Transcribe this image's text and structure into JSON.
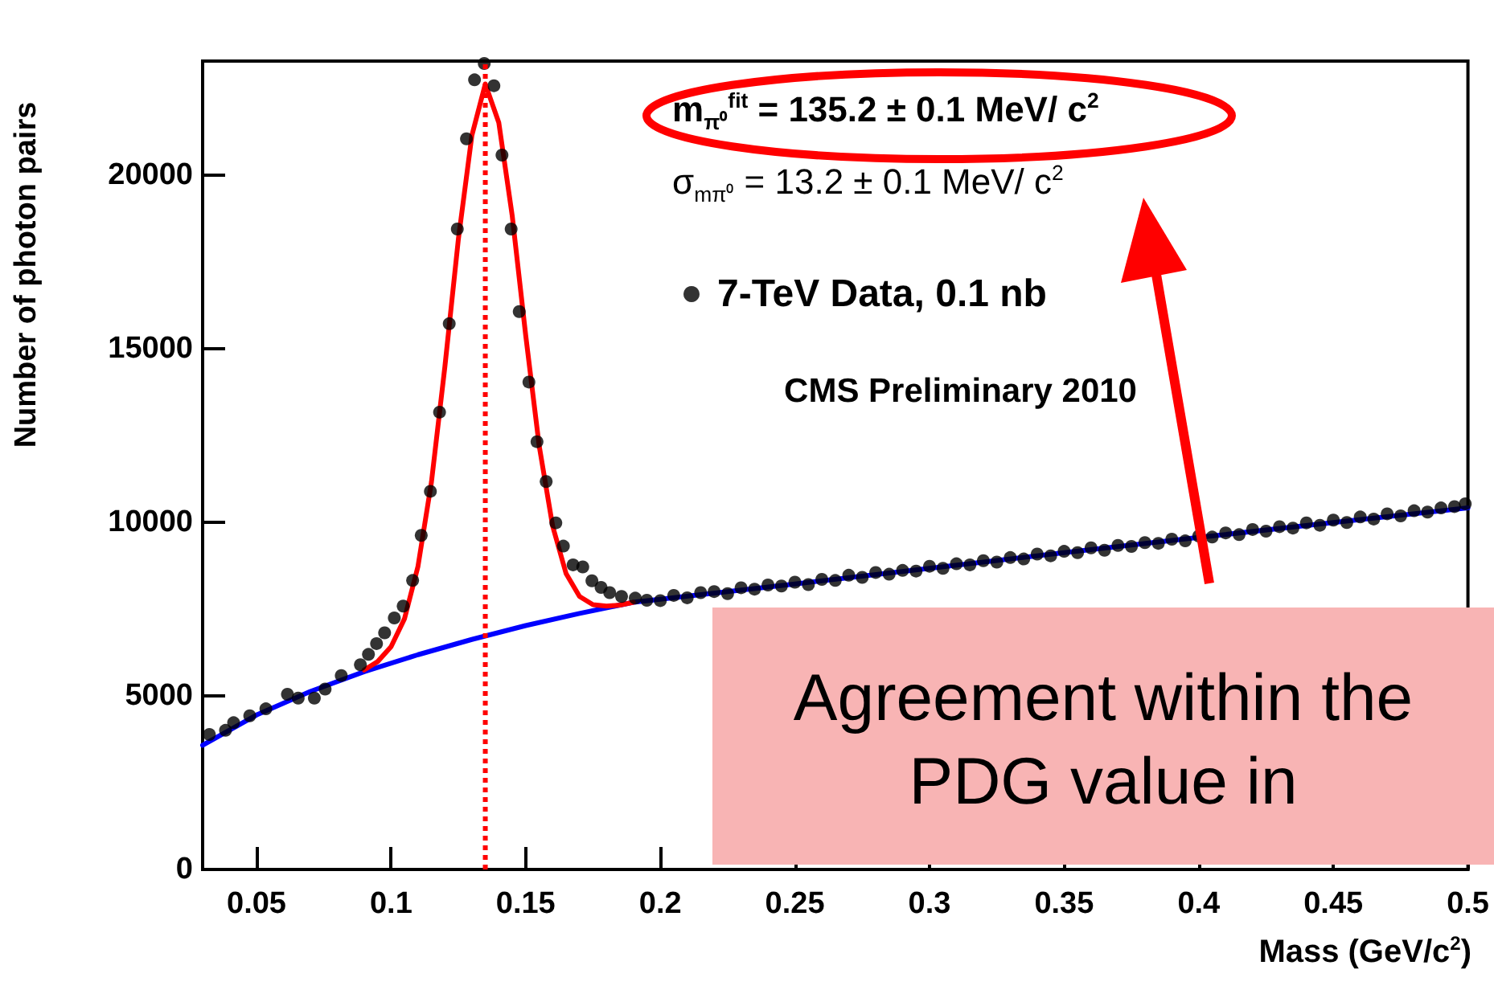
{
  "chart_data": {
    "type": "scatter",
    "xlabel": "Mass (GeV/c$^{2}$)",
    "ylabel": "Number of photon pairs",
    "annotations": [
      "m$_{π⁰}$$^{fit}$ = 135.2 ± 0.1 MeV/ c$^{2}$",
      "σ$_{mπ⁰}$ = 13.2 ± 0.1 MeV/ c$^{2}$",
      "CMS Preliminary 2010",
      "Agreement within the PDG value in"
    ],
    "xlim": [
      0.03,
      0.5
    ],
    "xticks": [
      0.05,
      0.1,
      0.15,
      0.2,
      0.25,
      0.3,
      0.35,
      0.4,
      0.45,
      0.5
    ],
    "ylim": [
      0,
      23300
    ],
    "yticks": [
      0,
      5000,
      10000,
      15000,
      20000
    ],
    "grid": false,
    "legend": "top",
    "marker": "circle",
    "ref_lines": [
      {
        "axis": "x",
        "value": 0.135,
        "color": "#ff0000",
        "line_style": "dotted"
      }
    ],
    "series": [
      {
        "name": "7-TeV Data, 0.1 nb",
        "color": "#000000",
        "x": [
          0.0325,
          0.0385,
          0.0415,
          0.0475,
          0.0535,
          0.0615,
          0.0655,
          0.0715,
          0.0755,
          0.0815,
          0.0886,
          0.0916,
          0.0946,
          0.0976,
          0.1012,
          0.1045,
          0.108,
          0.1112,
          0.1146,
          0.118,
          0.1216,
          0.1246,
          0.128,
          0.131,
          0.1346,
          0.1382,
          0.1412,
          0.1446,
          0.1476,
          0.1512,
          0.1542,
          0.1576,
          0.1612,
          0.164,
          0.1676,
          0.1712,
          0.1746,
          0.178,
          0.1812,
          0.1856,
          0.1907,
          0.195,
          0.2,
          0.205,
          0.21,
          0.215,
          0.22,
          0.225,
          0.23,
          0.235,
          0.24,
          0.245,
          0.25,
          0.255,
          0.26,
          0.265,
          0.27,
          0.275,
          0.28,
          0.285,
          0.29,
          0.295,
          0.3,
          0.305,
          0.31,
          0.315,
          0.32,
          0.325,
          0.33,
          0.335,
          0.34,
          0.345,
          0.35,
          0.355,
          0.36,
          0.365,
          0.37,
          0.375,
          0.38,
          0.385,
          0.39,
          0.395,
          0.4,
          0.405,
          0.41,
          0.415,
          0.42,
          0.425,
          0.43,
          0.435,
          0.44,
          0.445,
          0.45,
          0.455,
          0.46,
          0.465,
          0.47,
          0.475,
          0.48,
          0.485,
          0.49,
          0.495,
          0.499
        ],
        "values": [
          3890,
          4010,
          4230,
          4430,
          4630,
          5050,
          4940,
          4940,
          5200,
          5590,
          5900,
          6200,
          6510,
          6820,
          7250,
          7590,
          8330,
          9630,
          10900,
          13180,
          15730,
          18460,
          21060,
          22760,
          23230,
          22590,
          20590,
          18460,
          16080,
          14050,
          12330,
          11180,
          9990,
          9320,
          8780,
          8720,
          8320,
          8130,
          7980,
          7870,
          7820,
          7760,
          7750,
          7900,
          7830,
          7980,
          8010,
          7950,
          8120,
          8080,
          8200,
          8170,
          8280,
          8210,
          8360,
          8330,
          8480,
          8420,
          8560,
          8510,
          8620,
          8600,
          8740,
          8680,
          8810,
          8780,
          8900,
          8860,
          8990,
          8950,
          9090,
          9040,
          9170,
          9130,
          9270,
          9200,
          9340,
          9310,
          9420,
          9400,
          9520,
          9470,
          9610,
          9580,
          9700,
          9650,
          9800,
          9750,
          9880,
          9840,
          9990,
          9920,
          10070,
          10000,
          10160,
          10100,
          10250,
          10190,
          10340,
          10300,
          10420,
          10460,
          10540
        ]
      },
      {
        "type": "line",
        "marker": "none",
        "color": "#0000ff",
        "x": [
          0.03,
          0.05,
          0.07,
          0.09,
          0.11,
          0.13,
          0.15,
          0.17,
          0.19,
          0.25,
          0.3,
          0.35,
          0.4,
          0.45,
          0.5
        ],
        "values": [
          3580,
          4450,
          5130,
          5700,
          6190,
          6630,
          7030,
          7380,
          7700,
          8230,
          8680,
          9130,
          9570,
          10000,
          10420
        ]
      },
      {
        "type": "line",
        "marker": "none",
        "color": "#ff0000",
        "x": [
          0.09,
          0.095,
          0.1,
          0.105,
          0.11,
          0.115,
          0.12,
          0.125,
          0.13,
          0.135,
          0.14,
          0.145,
          0.15,
          0.155,
          0.16,
          0.165,
          0.17,
          0.175,
          0.18,
          0.185,
          0.19
        ],
        "values": [
          5750,
          5990,
          6420,
          7230,
          8740,
          11170,
          14500,
          18170,
          21150,
          22640,
          21530,
          18840,
          15400,
          12220,
          9900,
          8530,
          7870,
          7630,
          7590,
          7620,
          7700
        ]
      }
    ]
  }
}
